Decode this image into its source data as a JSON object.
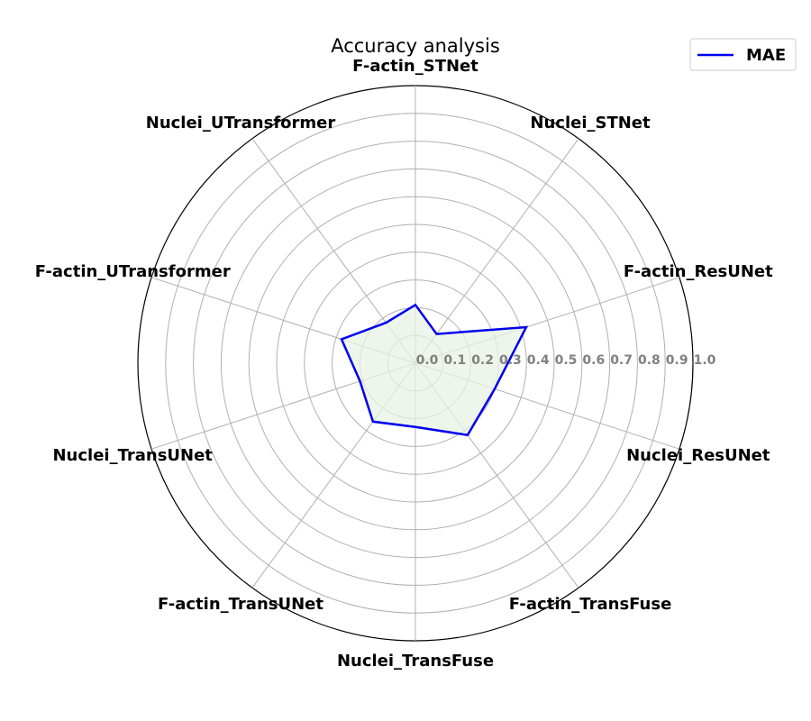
{
  "chart_data": {
    "type": "radar",
    "title": "Accuracy analysis",
    "categories": [
      "F-actin_STNet",
      "Nuclei_STNet",
      "F-actin_ResUNet",
      "Nuclei_ResUNet",
      "F-actin_TransFuse",
      "Nuclei_TransFuse",
      "F-actin_TransUNet",
      "Nuclei_TransUNet",
      "F-actin_UTransformer",
      "Nuclei_UTransformer"
    ],
    "series": [
      {
        "name": "MAE",
        "values": [
          0.21,
          0.13,
          0.42,
          0.3,
          0.32,
          0.23,
          0.26,
          0.21,
          0.28,
          0.18
        ]
      }
    ],
    "radial_ticks": [
      "0.0",
      "0.1",
      "0.2",
      "0.3",
      "0.4",
      "0.5",
      "0.6",
      "0.7",
      "0.8",
      "0.9",
      "1.0"
    ],
    "rlim": [
      0,
      1.0
    ],
    "grid": true,
    "legend_position": "top-right",
    "colors": {
      "line": "#0000ee",
      "fill": "#e8f3e6",
      "grid": "#b0b0b0",
      "frame": "#000000",
      "tick_label": "#808080"
    }
  }
}
